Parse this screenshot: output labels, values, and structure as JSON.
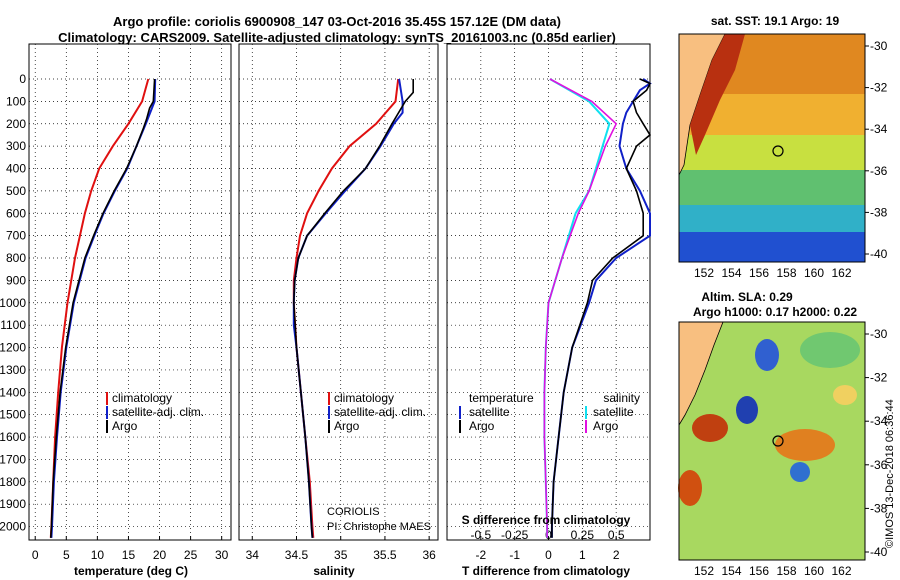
{
  "title": {
    "line1": "Argo profile: coriolis 6900908_147 03-Oct-2016 35.45S 157.12E (DM data)",
    "line2": "Climatology: CARS2009. Satellite-adjusted climatology: synTS_20161003.nc (0.85d earlier)"
  },
  "colors": {
    "climatology": "#e01010",
    "satellite": "#1020c8",
    "argo": "#000000",
    "satellite_salinity": "#10e0f0",
    "argo_salinity": "#e010e0",
    "land": "#f8bf80"
  },
  "credits": {
    "institution": "CORIOLIS",
    "pi": "PI: Christophe MAES",
    "imos": "©IMOS 13-Dec-2018 06:36:44"
  },
  "legend_profiles": {
    "climatology": "climatology",
    "satellite": "satellite-adj. clim.",
    "argo": "Argo"
  },
  "legend_diff": {
    "temperature_header": "temperature",
    "salinity_header": "salinity",
    "satellite": "satellite",
    "argo": "Argo"
  },
  "map_sst": {
    "title": "sat. SST: 19.1 Argo: 19",
    "yticks": [
      "-30",
      "-32",
      "-34",
      "-36",
      "-38",
      "-40"
    ],
    "xticks": [
      "152",
      "154",
      "156",
      "158",
      "160",
      "162"
    ]
  },
  "map_sla": {
    "title1": "Altim. SLA: 0.29",
    "title2": "Argo h1000: 0.17 h2000: 0.22",
    "yticks": [
      "-30",
      "-32",
      "-34",
      "-36",
      "-38",
      "-40"
    ],
    "xticks": [
      "152",
      "154",
      "156",
      "158",
      "160",
      "162"
    ]
  },
  "chart_data": [
    {
      "type": "line",
      "xlabel": "temperature (deg C)",
      "xlim": [
        -1,
        31.5
      ],
      "ylim": [
        2060,
        0
      ],
      "xticks": [
        0,
        5,
        10,
        15,
        20,
        25,
        30
      ],
      "yticks": [
        0,
        100,
        200,
        300,
        400,
        500,
        600,
        700,
        800,
        900,
        1000,
        1100,
        1200,
        1300,
        1400,
        1500,
        1600,
        1700,
        1800,
        1900,
        2000
      ],
      "series": [
        {
          "name": "climatology",
          "color": "#e01010",
          "depth": [
            0,
            100,
            200,
            300,
            400,
            500,
            600,
            800,
            1000,
            1200,
            1400,
            1600,
            1800,
            2000,
            2050
          ],
          "values": [
            18.2,
            17.2,
            15.0,
            12.5,
            10.3,
            9.0,
            8.0,
            6.4,
            5.2,
            4.3,
            3.7,
            3.2,
            2.9,
            2.6,
            2.5
          ]
        },
        {
          "name": "satellite-adj. clim.",
          "color": "#1020c8",
          "depth": [
            0,
            100,
            150,
            200,
            300,
            400,
            500,
            600,
            700,
            800,
            1000,
            1200,
            1400,
            1600,
            1800,
            2000,
            2050
          ],
          "values": [
            19.3,
            19.2,
            18.5,
            17.8,
            16.3,
            14.8,
            12.8,
            11.0,
            9.5,
            8.1,
            6.2,
            5.0,
            4.1,
            3.5,
            3.0,
            2.7,
            2.6
          ]
        },
        {
          "name": "Argo",
          "color": "#000000",
          "depth": [
            0,
            100,
            130,
            180,
            220,
            300,
            400,
            500,
            600,
            700,
            800,
            1000,
            1200,
            1400,
            1600,
            1800,
            2000,
            2050
          ],
          "values": [
            19.2,
            19.0,
            18.4,
            17.9,
            17.4,
            16.3,
            14.7,
            12.7,
            10.9,
            9.4,
            8.0,
            6.1,
            4.9,
            4.0,
            3.4,
            2.9,
            2.6,
            2.5
          ]
        }
      ]
    },
    {
      "type": "line",
      "xlabel": "salinity",
      "xlim": [
        33.85,
        36.1
      ],
      "ylim": [
        2060,
        0
      ],
      "xticks": [
        34,
        34.5,
        35,
        35.5,
        36
      ],
      "series": [
        {
          "name": "climatology",
          "color": "#e01010",
          "depth": [
            0,
            100,
            200,
            300,
            400,
            500,
            600,
            700,
            800,
            900,
            1000,
            1200,
            1400,
            1600,
            1800,
            2000,
            2050
          ],
          "values": [
            35.65,
            35.62,
            35.4,
            35.1,
            34.9,
            34.75,
            34.62,
            34.54,
            34.5,
            34.47,
            34.47,
            34.5,
            34.55,
            34.6,
            34.65,
            34.68,
            34.69
          ]
        },
        {
          "name": "satellite-adj. clim.",
          "color": "#1020c8",
          "depth": [
            0,
            100,
            150,
            200,
            300,
            400,
            500,
            600,
            700,
            800,
            900,
            1000,
            1100,
            1200,
            1400,
            1600,
            1800,
            2000,
            2050
          ],
          "values": [
            35.66,
            35.7,
            35.7,
            35.6,
            35.45,
            35.28,
            35.05,
            34.83,
            34.62,
            34.52,
            34.48,
            34.47,
            34.47,
            34.5,
            34.55,
            34.6,
            34.64,
            34.67,
            34.68
          ]
        },
        {
          "name": "Argo",
          "color": "#000000",
          "depth": [
            0,
            60,
            100,
            200,
            300,
            400,
            500,
            600,
            700,
            800,
            900,
            1000,
            1200,
            1400,
            1600,
            1800,
            2000,
            2050
          ],
          "values": [
            35.82,
            35.82,
            35.73,
            35.58,
            35.44,
            35.28,
            35.03,
            34.82,
            34.62,
            34.52,
            34.48,
            34.47,
            34.5,
            34.55,
            34.6,
            34.64,
            34.67,
            34.68
          ]
        }
      ]
    },
    {
      "type": "line",
      "xlabel": "T difference from climatology",
      "secondary_xlabel": "S difference from climatology",
      "xlim": [
        -3,
        3
      ],
      "ylim": [
        2060,
        0
      ],
      "xticks": [
        -2,
        -1,
        0,
        1,
        2
      ],
      "secondary_xticks": [
        "-0.5",
        "-0.25",
        "0",
        "0.25",
        "0.5"
      ],
      "series": [
        {
          "name": "temperature satellite",
          "color": "#1020c8",
          "depth": [
            0,
            20,
            50,
            100,
            150,
            200,
            300,
            400,
            500,
            600,
            700,
            800,
            900,
            1000,
            1200,
            1400,
            1600,
            1800,
            2000,
            2050
          ],
          "values": [
            2.8,
            3.0,
            2.7,
            2.5,
            2.3,
            2.2,
            2.1,
            2.3,
            2.7,
            3.0,
            3.0,
            2.0,
            1.4,
            1.2,
            0.7,
            0.45,
            0.3,
            0.15,
            0.1,
            0.1
          ]
        },
        {
          "name": "temperature Argo",
          "color": "#000000",
          "depth": [
            0,
            20,
            50,
            100,
            150,
            200,
            250,
            300,
            400,
            500,
            600,
            700,
            800,
            900,
            1000,
            1200,
            1400,
            1600,
            1800,
            2000,
            2050
          ],
          "values": [
            2.7,
            3.0,
            2.9,
            2.5,
            2.6,
            2.8,
            3.0,
            2.6,
            2.3,
            2.6,
            2.8,
            2.8,
            1.9,
            1.3,
            1.15,
            0.7,
            0.45,
            0.3,
            0.15,
            0.1,
            0.1
          ]
        },
        {
          "name": "salinity satellite",
          "color": "#10e0f0",
          "depth": [
            0,
            100,
            200,
            300,
            400,
            500,
            600,
            800,
            1000,
            1200,
            1400,
            1600,
            1800,
            2000,
            2050
          ],
          "values": [
            0.01,
            0.3,
            0.45,
            0.4,
            0.35,
            0.3,
            0.2,
            0.1,
            0.0,
            -0.02,
            -0.03,
            -0.03,
            -0.02,
            -0.01,
            -0.01
          ]
        },
        {
          "name": "salinity Argo",
          "color": "#e010e0",
          "depth": [
            0,
            100,
            200,
            300,
            400,
            500,
            600,
            800,
            1000,
            1200,
            1400,
            1600,
            1800,
            2000,
            2050
          ],
          "values": [
            0.01,
            0.32,
            0.5,
            0.42,
            0.36,
            0.3,
            0.22,
            0.1,
            0.0,
            -0.02,
            -0.03,
            -0.03,
            -0.02,
            -0.01,
            -0.01
          ]
        }
      ]
    }
  ]
}
